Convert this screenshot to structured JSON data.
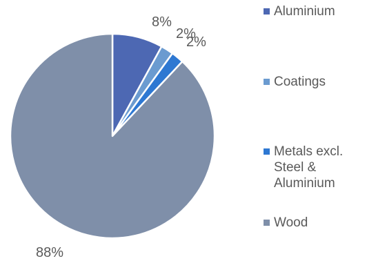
{
  "chart_data": {
    "type": "pie",
    "start_angle": "12-o-clock",
    "direction": "clockwise",
    "slices": [
      {
        "name": "Aluminium",
        "value": 8,
        "label": "8%",
        "color": "#4d68b3"
      },
      {
        "name": "Coatings",
        "value": 2,
        "label": "2%",
        "color": "#6b9bd0"
      },
      {
        "name": "Metals excl. Steel & Aluminium",
        "value": 2,
        "label": "2%",
        "color": "#2e78d2"
      },
      {
        "name": "Wood",
        "value": 88,
        "label": "88%",
        "color": "#7f8fa9"
      }
    ],
    "legend_placement": "right",
    "title": ""
  }
}
